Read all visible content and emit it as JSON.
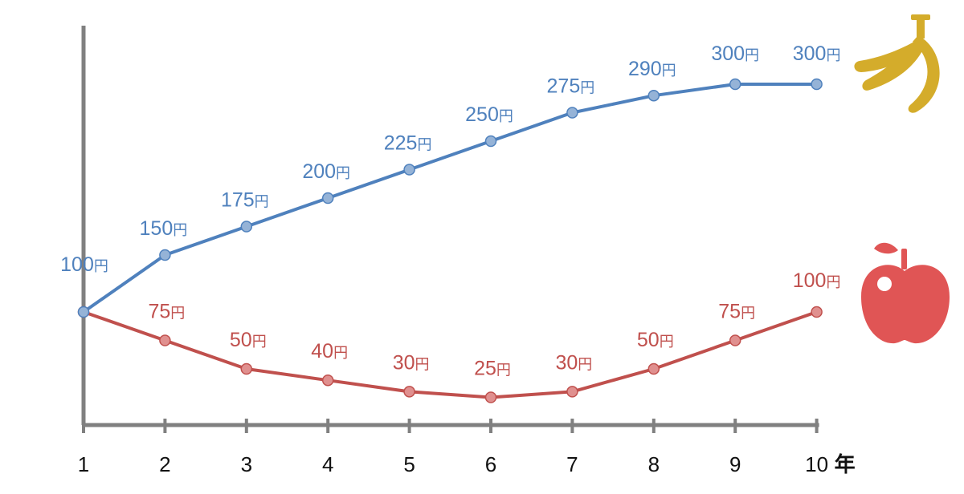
{
  "chart_data": {
    "type": "line",
    "categories": [
      "1",
      "2",
      "3",
      "4",
      "5",
      "6",
      "7",
      "8",
      "9",
      "10"
    ],
    "x_unit_label": "年",
    "value_suffix": "円",
    "ylim": [
      0,
      330
    ],
    "grid": false,
    "legend": "none",
    "series": [
      {
        "key": "banana",
        "icon": "banana-icon",
        "color": "#4f81bd",
        "marker_color": "#95b3d7",
        "values": [
          100,
          150,
          175,
          200,
          225,
          250,
          275,
          290,
          300,
          300
        ],
        "labels": [
          "100",
          "150",
          "175",
          "200",
          "225",
          "250",
          "275",
          "290",
          "300",
          "300"
        ]
      },
      {
        "key": "apple",
        "icon": "apple-icon",
        "color": "#c0504d",
        "marker_color": "#e0908f",
        "values": [
          100,
          75,
          50,
          40,
          30,
          25,
          30,
          50,
          75,
          100
        ],
        "labels": [
          "",
          "75",
          "50",
          "40",
          "30",
          "25",
          "30",
          "50",
          "75",
          "100"
        ]
      }
    ],
    "icons": {
      "banana_color": "#d4ac2b",
      "apple_color": "#e05555"
    }
  }
}
